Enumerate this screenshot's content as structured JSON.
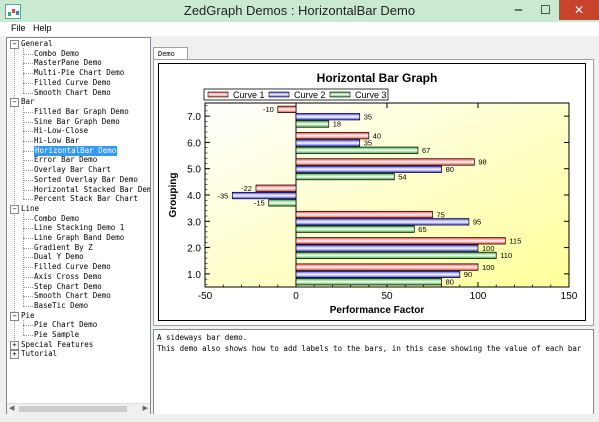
{
  "window": {
    "title": "ZedGraph Demos : HorizontalBar Demo",
    "min": "─",
    "max": "☐",
    "close": "✕"
  },
  "menu": [
    "File",
    "Help"
  ],
  "tree": [
    {
      "label": "General",
      "level": 0,
      "expander": "−"
    },
    {
      "label": "Combo Demo",
      "level": 1
    },
    {
      "label": "MasterPane Demo",
      "level": 1
    },
    {
      "label": "Multi-Pie Chart Demo",
      "level": 1
    },
    {
      "label": "Filled Curve Demo",
      "level": 1
    },
    {
      "label": "Smooth Chart Demo",
      "level": 1
    },
    {
      "label": "Bar",
      "level": 0,
      "expander": "−"
    },
    {
      "label": "Filled Bar Graph Demo",
      "level": 1
    },
    {
      "label": "Sine Bar Graph Demo",
      "level": 1
    },
    {
      "label": "Hi-Low-Close",
      "level": 1
    },
    {
      "label": "Hi-Low Bar",
      "level": 1
    },
    {
      "label": "HorizontalBar Demo",
      "level": 1,
      "selected": true
    },
    {
      "label": "Error Bar Demo",
      "level": 1
    },
    {
      "label": "Overlay Bar Chart",
      "level": 1
    },
    {
      "label": "Sorted Overlay Bar Demo",
      "level": 1
    },
    {
      "label": "Horizontal Stacked Bar Demo",
      "level": 1
    },
    {
      "label": "Percent Stack Bar Chart",
      "level": 1
    },
    {
      "label": "Line",
      "level": 0,
      "expander": "−"
    },
    {
      "label": "Combo Demo",
      "level": 1
    },
    {
      "label": "Line Stacking Demo 1",
      "level": 1
    },
    {
      "label": "Line Graph Band Demo",
      "level": 1
    },
    {
      "label": "Gradient By Z",
      "level": 1
    },
    {
      "label": "Dual Y Demo",
      "level": 1
    },
    {
      "label": "Filled Curve Demo",
      "level": 1
    },
    {
      "label": "Axis Cross Demo",
      "level": 1
    },
    {
      "label": "Step Chart Demo",
      "level": 1
    },
    {
      "label": "Smooth Chart Demo",
      "level": 1
    },
    {
      "label": "BaseTic Demo",
      "level": 1
    },
    {
      "label": "Pie",
      "level": 0,
      "expander": "−"
    },
    {
      "label": "Pie Chart Demo",
      "level": 1
    },
    {
      "label": "Pie Sample",
      "level": 1
    },
    {
      "label": "Special Features",
      "level": 0,
      "expander": "+"
    },
    {
      "label": "Tutorial",
      "level": 0,
      "expander": "+"
    }
  ],
  "tab": {
    "label": "Demo"
  },
  "description": [
    "A sideways bar demo.",
    "This demo also shows how to add labels to the bars, in this case showing the value of each bar"
  ],
  "colors": {
    "curve1": "#ff4040",
    "curve2": "#4040ff",
    "curve3": "#33b033",
    "gradient_start": "#ffffff",
    "gradient_end": "#ffff99",
    "close": "#c7432c"
  },
  "chart_data": {
    "type": "bar",
    "orientation": "horizontal",
    "title": "Horizontal Bar Graph",
    "xlabel": "Performance Factor",
    "ylabel": "Grouping",
    "xlim": [
      -50,
      150
    ],
    "ylim": [
      0.5,
      7.5
    ],
    "x_ticks": [
      "-50",
      "0",
      "50",
      "100",
      "150"
    ],
    "y_ticks": [
      "1.0",
      "2.0",
      "3.0",
      "4.0",
      "5.0",
      "6.0",
      "7.0"
    ],
    "categories": [
      1,
      2,
      3,
      4,
      5,
      6,
      7
    ],
    "legend_position": "top-left",
    "series": [
      {
        "name": "Curve 1",
        "color": "#ff4040",
        "values": [
          100,
          115,
          75,
          -22,
          98,
          40,
          -10
        ]
      },
      {
        "name": "Curve 2",
        "color": "#4040ff",
        "values": [
          90,
          100,
          95,
          -35,
          80,
          35,
          35
        ]
      },
      {
        "name": "Curve 3",
        "color": "#33b033",
        "values": [
          80,
          110,
          65,
          -15,
          54,
          67,
          18
        ]
      }
    ]
  }
}
